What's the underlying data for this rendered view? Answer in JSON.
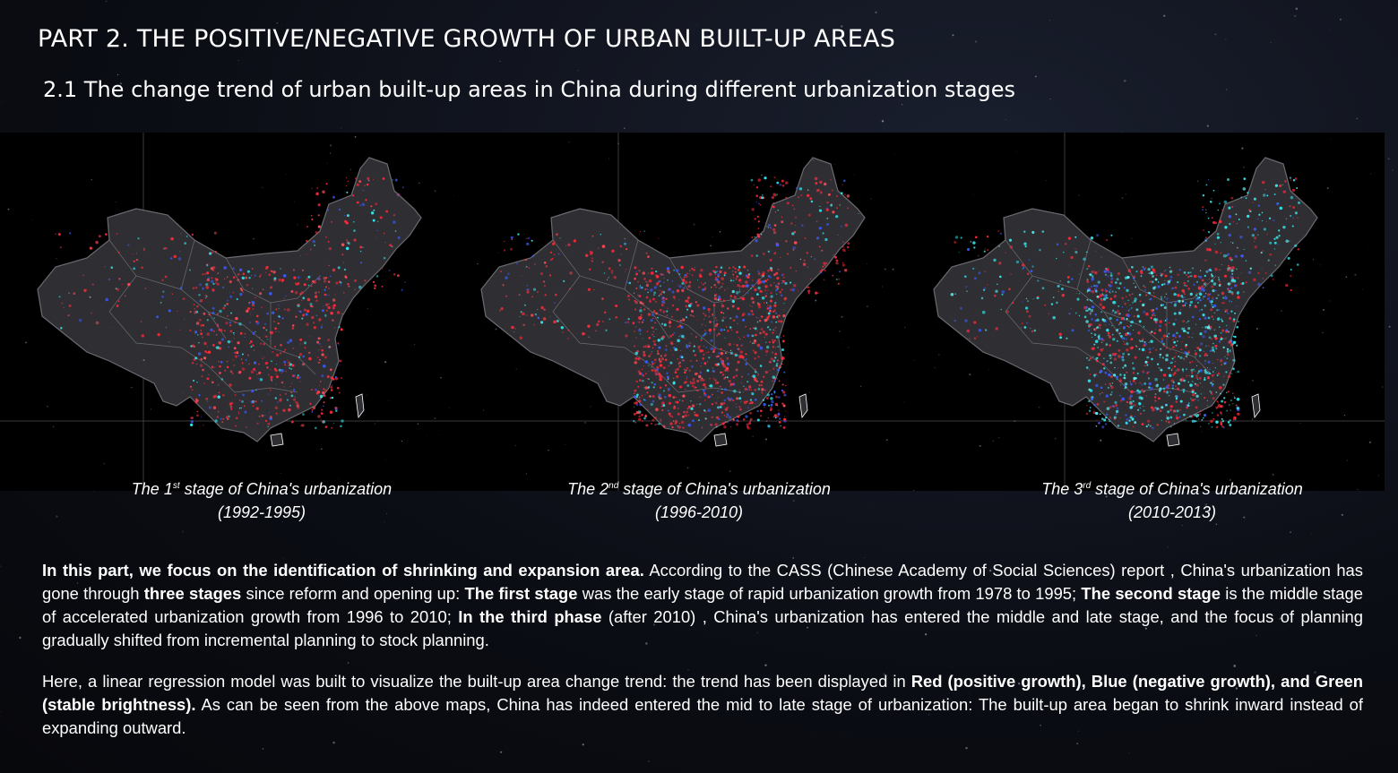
{
  "header": {
    "title": "PART 2. THE POSITIVE/NEGATIVE GROWTH OF URBAN BUILT-UP AREAS",
    "subtitle": "2.1 The change trend of urban built-up areas in China during different urbanization stages"
  },
  "maps": [
    {
      "caption_prefix": "The 1",
      "caption_sup": "st",
      "caption_suffix": "  stage of China's urbanization",
      "years": "(1992-1995)",
      "dominant_color": "red"
    },
    {
      "caption_prefix": "The 2",
      "caption_sup": "nd",
      "caption_suffix": "  stage of China's urbanization",
      "years": "(1996-2010)",
      "dominant_color": "red"
    },
    {
      "caption_prefix": "The 3",
      "caption_sup": "rd",
      "caption_suffix": " stage of China's urbanization",
      "years": "(2010-2013)",
      "dominant_color": "cyan"
    }
  ],
  "colors": {
    "positive_growth": "#ff2a3a",
    "negative_growth": "#2a6bff",
    "stable": "#33e6ee",
    "land": "#2f2f33",
    "border": "#6a6a70"
  },
  "paragraphs": {
    "p1": {
      "b1": "In this part, we focus on the identification of shrinking and expansion area.",
      "t1": " According to the CASS (Chinese Academy of Social Sciences) report , China's urbanization has gone through ",
      "b2": "three stages",
      "t2": " since reform and opening up: ",
      "b3": "The first stage",
      "t3": " was the early stage of rapid urbanization growth from 1978 to 1995;  ",
      "b4": "The second stage",
      "t4": " is the middle stage of accelerated urbanization growth from 1996 to 2010;  ",
      "b5": "In the third phase",
      "t5": " (after 2010) , China's urbanization has entered the middle and late stage, and the focus of planning gradually shifted from incremental planning to stock planning."
    },
    "p2": {
      "t1": "Here, a linear regression model was built to visualize the built-up area change trend: the trend has been displayed in ",
      "b1": "Red (positive growth), Blue (negative growth), and Green (stable brightness).",
      "t2": " As can be seen from the above maps, China has indeed entered the mid to late stage of urbanization: The built-up area began to shrink inward instead of expanding outward."
    }
  }
}
